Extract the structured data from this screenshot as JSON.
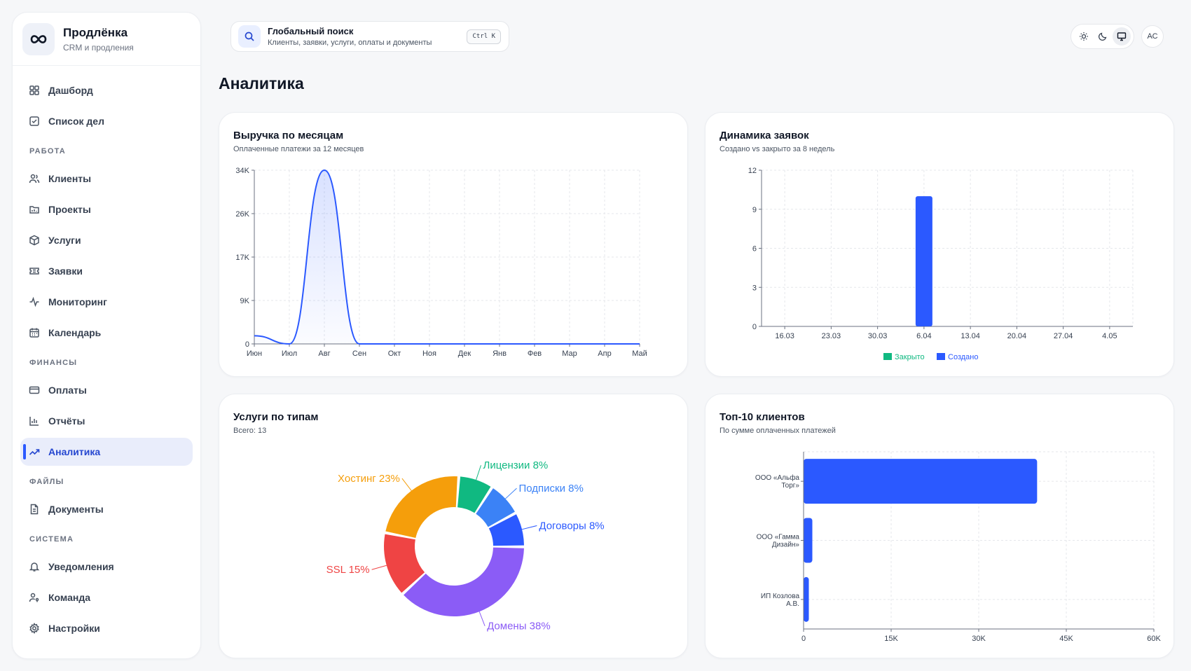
{
  "app": {
    "name": "Продлёнка",
    "subtitle": "CRM и продления"
  },
  "nav": {
    "top": [
      {
        "label": "Дашборд",
        "icon": "dashboard-icon"
      },
      {
        "label": "Список дел",
        "icon": "checklist-icon"
      }
    ],
    "work_title": "РАБОТА",
    "work": [
      {
        "label": "Клиенты",
        "icon": "users-icon"
      },
      {
        "label": "Проекты",
        "icon": "folder-icon"
      },
      {
        "label": "Услуги",
        "icon": "box-icon"
      },
      {
        "label": "Заявки",
        "icon": "ticket-icon"
      },
      {
        "label": "Мониторинг",
        "icon": "activity-icon"
      },
      {
        "label": "Календарь",
        "icon": "calendar-icon"
      }
    ],
    "finance_title": "ФИНАНСЫ",
    "finance": [
      {
        "label": "Оплаты",
        "icon": "credit-card-icon"
      },
      {
        "label": "Отчёты",
        "icon": "bar-chart-icon"
      },
      {
        "label": "Аналитика",
        "icon": "trending-up-icon",
        "active": true
      }
    ],
    "files_title": "ФАЙЛЫ",
    "files": [
      {
        "label": "Документы",
        "icon": "document-icon"
      }
    ],
    "system_title": "СИСТЕМА",
    "system": [
      {
        "label": "Уведомления",
        "icon": "bell-icon"
      },
      {
        "label": "Команда",
        "icon": "user-key-icon"
      },
      {
        "label": "Настройки",
        "icon": "gear-icon"
      }
    ]
  },
  "search": {
    "title": "Глобальный поиск",
    "hint": "Клиенты, заявки, услуги, оплаты и документы",
    "shortcut": "Ctrl K"
  },
  "theme": {
    "options": [
      "sun-icon",
      "moon-icon",
      "monitor-icon"
    ],
    "selected": "monitor-icon"
  },
  "user": {
    "initials": "АС"
  },
  "page": {
    "title": "Аналитика"
  },
  "colors": {
    "accent": "#2b59ff",
    "green": "#10b981",
    "blue": "#3b82f6",
    "orange": "#f59e0b",
    "red": "#ef4444",
    "purple": "#8b5cf6"
  },
  "cards": {
    "revenue": {
      "title": "Выручка по месяцам",
      "subtitle": "Оплаченные платежи за 12 месяцев"
    },
    "tickets": {
      "title": "Динамика заявок",
      "subtitle": "Создано vs закрыто за 8 недель"
    },
    "services": {
      "title": "Услуги по типам",
      "subtitle": "Всего: 13"
    },
    "clients": {
      "title": "Топ-10 клиентов",
      "subtitle": "По сумме оплаченных платежей"
    }
  },
  "chart_data": [
    {
      "type": "area",
      "categories": [
        "Июн",
        "Июл",
        "Авг",
        "Сен",
        "Окт",
        "Ноя",
        "Дек",
        "Янв",
        "Фев",
        "Мар",
        "Апр",
        "Май"
      ],
      "values": [
        1600,
        0,
        34000,
        0,
        0,
        0,
        0,
        0,
        0,
        0,
        0,
        0
      ],
      "ylim": [
        0,
        34000
      ],
      "yticks": [
        "0",
        "9K",
        "17K",
        "26K",
        "34K"
      ],
      "grid": true
    },
    {
      "type": "bar",
      "categories": [
        "16.03",
        "23.03",
        "30.03",
        "6.04",
        "13.04",
        "20.04",
        "27.04",
        "4.05"
      ],
      "series": [
        {
          "name": "Закрыто",
          "color": "#10b981",
          "values": [
            0,
            0,
            0,
            0,
            0,
            0,
            0,
            0
          ]
        },
        {
          "name": "Создано",
          "color": "#2b59ff",
          "values": [
            0,
            0,
            0,
            10,
            0,
            0,
            0,
            0
          ]
        }
      ],
      "ylim": [
        0,
        12
      ],
      "yticks": [
        "0",
        "3",
        "6",
        "9",
        "12"
      ],
      "legend": "bottom",
      "grid": true
    },
    {
      "type": "pie",
      "donut": true,
      "slices": [
        {
          "label": "Лицензии 8%",
          "value": 8,
          "color": "#10b981"
        },
        {
          "label": "Подписки 8%",
          "value": 8,
          "color": "#3b82f6"
        },
        {
          "label": "Договоры 8%",
          "value": 8,
          "color": "#2b59ff"
        },
        {
          "label": "Домены 38%",
          "value": 38,
          "color": "#8b5cf6"
        },
        {
          "label": "SSL 15%",
          "value": 15,
          "color": "#ef4444"
        },
        {
          "label": "Хостинг 23%",
          "value": 23,
          "color": "#f59e0b"
        }
      ]
    },
    {
      "type": "bar",
      "orientation": "horizontal",
      "categories": [
        [
          "ООО «Альфа",
          "Торг»"
        ],
        [
          "ООО «Гамма",
          "Дизайн»"
        ],
        [
          "ИП Козлова",
          "А.В."
        ]
      ],
      "values": [
        40000,
        1500,
        900
      ],
      "xlim": [
        0,
        60000
      ],
      "xticks": [
        "0",
        "15K",
        "30K",
        "45K",
        "60K"
      ],
      "grid": true
    }
  ]
}
